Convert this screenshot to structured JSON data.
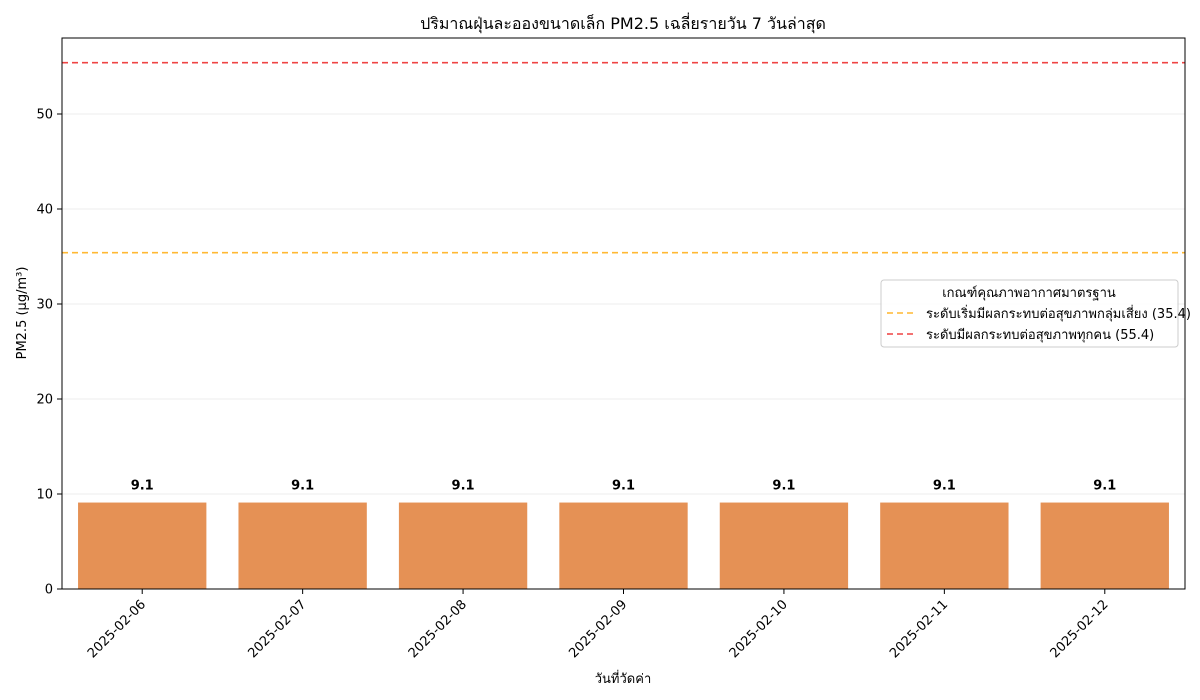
{
  "chart_data": {
    "type": "bar",
    "title": "ปริมาณฝุ่นละอองขนาดเล็ก PM2.5 เฉลี่ยรายวัน 7 วันล่าสุด",
    "xlabel": "วันที่วัดค่า",
    "ylabel": "PM2.5 (µg/m³)",
    "categories": [
      "2025-02-06",
      "2025-02-07",
      "2025-02-08",
      "2025-02-09",
      "2025-02-10",
      "2025-02-11",
      "2025-02-12"
    ],
    "values": [
      9.1,
      9.1,
      9.1,
      9.1,
      9.1,
      9.1,
      9.1
    ],
    "value_labels": [
      "9.1",
      "9.1",
      "9.1",
      "9.1",
      "9.1",
      "9.1",
      "9.1"
    ],
    "ylim": [
      0,
      58
    ],
    "yticks": [
      0,
      10,
      20,
      30,
      40,
      50
    ],
    "grid": "y",
    "bar_color": "#e59155",
    "reference_lines": [
      {
        "label": "ระดับเริ่มมีผลกระทบต่อสุขภาพกลุ่มเสี่ยง (35.4)",
        "value": 35.4,
        "color": "#ffb833",
        "style": "dashed"
      },
      {
        "label": "ระดับมีผลกระทบต่อสุขภาพทุกคน (55.4)",
        "value": 55.4,
        "color": "#ef4444",
        "style": "dashed"
      }
    ],
    "legend": {
      "title": "เกณฑ์คุณภาพอากาศมาตรฐาน",
      "placement": "right"
    }
  }
}
